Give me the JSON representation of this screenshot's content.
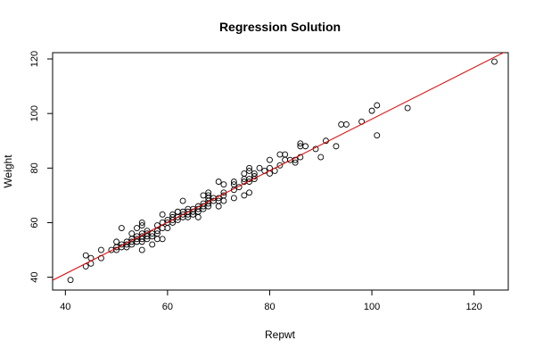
{
  "chart_data": {
    "type": "scatter",
    "title": "Regression Solution",
    "xlabel": "Repwt",
    "ylabel": "Weight",
    "xlim": [
      37.5,
      126.7
    ],
    "ylim": [
      35.3,
      122.3
    ],
    "x_ticks": [
      40,
      60,
      80,
      100,
      120
    ],
    "y_ticks": [
      40,
      60,
      80,
      100,
      120
    ],
    "grid": false,
    "legend": "none",
    "point_color": "#000000",
    "line_color": "#e00000",
    "regression_line": {
      "x": [
        37.5,
        126.7
      ],
      "y": [
        38.9,
        123.2
      ]
    },
    "points": [
      [
        41,
        39
      ],
      [
        44,
        44
      ],
      [
        44,
        48
      ],
      [
        45,
        45
      ],
      [
        45,
        47
      ],
      [
        47,
        47
      ],
      [
        47,
        50
      ],
      [
        49,
        50
      ],
      [
        50,
        50
      ],
      [
        50,
        51
      ],
      [
        50,
        53
      ],
      [
        51,
        51
      ],
      [
        51,
        52
      ],
      [
        51,
        58
      ],
      [
        52,
        51
      ],
      [
        52,
        52
      ],
      [
        52,
        53
      ],
      [
        53,
        52
      ],
      [
        53,
        53
      ],
      [
        53,
        54
      ],
      [
        53,
        56
      ],
      [
        54,
        53
      ],
      [
        54,
        54
      ],
      [
        54,
        55
      ],
      [
        54,
        58
      ],
      [
        55,
        50
      ],
      [
        55,
        53
      ],
      [
        55,
        54
      ],
      [
        55,
        55
      ],
      [
        55,
        56
      ],
      [
        55,
        59
      ],
      [
        55,
        60
      ],
      [
        56,
        54
      ],
      [
        56,
        55
      ],
      [
        56,
        56
      ],
      [
        56,
        57
      ],
      [
        57,
        52
      ],
      [
        57,
        55
      ],
      [
        57,
        56
      ],
      [
        58,
        54
      ],
      [
        58,
        56
      ],
      [
        58,
        57
      ],
      [
        58,
        59
      ],
      [
        59,
        54
      ],
      [
        59,
        58
      ],
      [
        59,
        60
      ],
      [
        59,
        63
      ],
      [
        60,
        58
      ],
      [
        60,
        60
      ],
      [
        60,
        61
      ],
      [
        61,
        60
      ],
      [
        61,
        61
      ],
      [
        61,
        62
      ],
      [
        61,
        63
      ],
      [
        62,
        61
      ],
      [
        62,
        62
      ],
      [
        62,
        64
      ],
      [
        63,
        62
      ],
      [
        63,
        63
      ],
      [
        63,
        64
      ],
      [
        63,
        68
      ],
      [
        64,
        62
      ],
      [
        64,
        63
      ],
      [
        64,
        64
      ],
      [
        64,
        65
      ],
      [
        65,
        63
      ],
      [
        65,
        64
      ],
      [
        65,
        65
      ],
      [
        66,
        62
      ],
      [
        66,
        64
      ],
      [
        66,
        65
      ],
      [
        66,
        66
      ],
      [
        67,
        65
      ],
      [
        67,
        66
      ],
      [
        67,
        67
      ],
      [
        67,
        70
      ],
      [
        68,
        66
      ],
      [
        68,
        67
      ],
      [
        68,
        68
      ],
      [
        68,
        69
      ],
      [
        68,
        70
      ],
      [
        68,
        71
      ],
      [
        69,
        68
      ],
      [
        69,
        69
      ],
      [
        70,
        66
      ],
      [
        70,
        68
      ],
      [
        70,
        69
      ],
      [
        70,
        75
      ],
      [
        71,
        68
      ],
      [
        71,
        70
      ],
      [
        71,
        71
      ],
      [
        71,
        74
      ],
      [
        73,
        69
      ],
      [
        73,
        72
      ],
      [
        73,
        74
      ],
      [
        73,
        75
      ],
      [
        74,
        73
      ],
      [
        75,
        70
      ],
      [
        75,
        75
      ],
      [
        75,
        76
      ],
      [
        75,
        78
      ],
      [
        76,
        71
      ],
      [
        76,
        75
      ],
      [
        76,
        76
      ],
      [
        76,
        79
      ],
      [
        76,
        80
      ],
      [
        77,
        76
      ],
      [
        77,
        77
      ],
      [
        77,
        78
      ],
      [
        78,
        80
      ],
      [
        79,
        79
      ],
      [
        80,
        78
      ],
      [
        80,
        80
      ],
      [
        80,
        83
      ],
      [
        81,
        79
      ],
      [
        82,
        81
      ],
      [
        82,
        85
      ],
      [
        83,
        83
      ],
      [
        83,
        85
      ],
      [
        84,
        83
      ],
      [
        85,
        82
      ],
      [
        85,
        83
      ],
      [
        86,
        84
      ],
      [
        86,
        88
      ],
      [
        86,
        89
      ],
      [
        87,
        88
      ],
      [
        89,
        87
      ],
      [
        90,
        84
      ],
      [
        91,
        90
      ],
      [
        93,
        88
      ],
      [
        94,
        96
      ],
      [
        95,
        96
      ],
      [
        98,
        97
      ],
      [
        100,
        101
      ],
      [
        101,
        92
      ],
      [
        101,
        103
      ],
      [
        107,
        102
      ],
      [
        124,
        119
      ]
    ]
  }
}
